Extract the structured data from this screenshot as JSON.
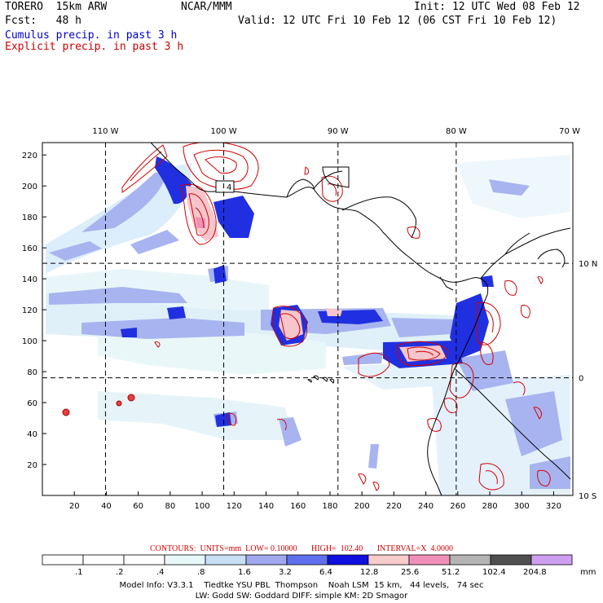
{
  "header": {
    "model": "TORERO  15km ARW",
    "center": "NCAR/MMM",
    "init": "Init: 12 UTC Wed 08 Feb 12",
    "fcst_label": "Fcst:   48 h",
    "valid": "Valid: 12 UTC Fri 10 Feb 12 (06 CST Fri 10 Feb 12)",
    "cumulus": "Cumulus precip. in past 3 h",
    "explicit": "Explicit precip. in past 3 h"
  },
  "colors": {
    "cumulus_title": "#0000cc",
    "explicit_title": "#cc0000",
    "contour": "#d40000",
    "coast": "#000000"
  },
  "axes": {
    "lon_labels": [
      "110 W",
      "100 W",
      "90 W",
      "80 W",
      "70 W"
    ],
    "lat_labels": [
      "10 N",
      "0",
      "10 S"
    ],
    "x_ticks": [
      "20",
      "40",
      "60",
      "80",
      "100",
      "120",
      "140",
      "160",
      "180",
      "200",
      "220",
      "240",
      "260",
      "280",
      "300",
      "320"
    ],
    "y_ticks": [
      "220",
      "200",
      "180",
      "160",
      "140",
      "120",
      "100",
      "80",
      "60",
      "40",
      "20"
    ],
    "x_range": [
      0,
      332
    ],
    "y_range": [
      0,
      228
    ],
    "grid_x": [
      39.5,
      113.5,
      185,
      259
    ],
    "grid_y": [
      150,
      76
    ]
  },
  "map_labels": {
    "box_label": "4"
  },
  "contour_info": "CONTOURS:  UNITS=mm  LOW= 0.10000       HIGH=  102.40       INTERVAL=X  4.0000",
  "legend": {
    "unit": "mm",
    "values": [
      ".1",
      ".2",
      ".4",
      ".8",
      "1.6",
      "3.2",
      "6.4",
      "12.8",
      "25.6",
      "51.2",
      "102.4",
      "204.8"
    ],
    "colors": [
      "#ffffff",
      "#ffffff",
      "#ffffff",
      "#e8f8f8",
      "#c8e0f6",
      "#a0a8ee",
      "#6070ec",
      "#1010e0",
      "#f8cccc",
      "#f090b8",
      "#b4b4b4",
      "#505050",
      "#d0a0f0"
    ]
  },
  "model_info": {
    "line1": "Model Info: V3.3.1    Tiedtke YSU PBL  Thompson    Noah LSM  15 km,   44 levels,   74 sec",
    "line2": "LW: Godd SW: Goddard DIFF: simple KM: 2D Smagor"
  }
}
